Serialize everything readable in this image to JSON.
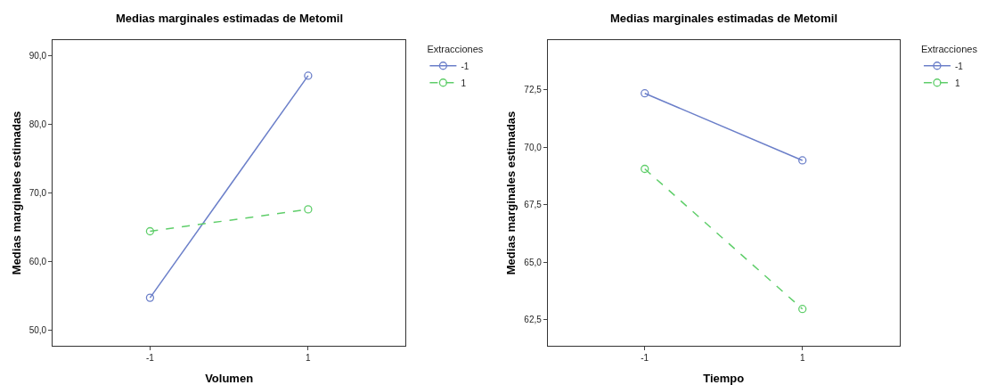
{
  "chart_data": [
    {
      "type": "line",
      "title": "Medias marginales estimadas de Metomil",
      "xlabel": "Volumen",
      "ylabel": "Medias marginales estimadas",
      "legend_title": "Extracciones",
      "legend": "top right",
      "marker": "circle",
      "categories": [
        "-1",
        "1"
      ],
      "ylim": [
        47.7,
        92.3
      ],
      "yticks": [
        {
          "value": 50,
          "label": "50,0"
        },
        {
          "value": 60,
          "label": "60,0"
        },
        {
          "value": 70,
          "label": "70,0"
        },
        {
          "value": 80,
          "label": "80,0"
        },
        {
          "value": 90,
          "label": "90,0"
        }
      ],
      "series": [
        {
          "name": "-1",
          "color": "#6b7fc9",
          "line_style": "solid",
          "values": [
            54.7,
            87.1
          ]
        },
        {
          "name": "1",
          "color": "#5fce6a",
          "line_style": "dashed",
          "values": [
            64.4,
            67.6
          ]
        }
      ]
    },
    {
      "type": "line",
      "title": "Medias marginales estimadas de Metomil",
      "xlabel": "Tiempo",
      "ylabel": "Medias marginales estimadas",
      "legend_title": "Extracciones",
      "legend": "top right",
      "marker": "circle",
      "categories": [
        "-1",
        "1"
      ],
      "ylim": [
        61.36,
        74.67
      ],
      "yticks": [
        {
          "value": 62.5,
          "label": "62,5"
        },
        {
          "value": 65,
          "label": "65,0"
        },
        {
          "value": 67.5,
          "label": "67,5"
        },
        {
          "value": 70,
          "label": "70,0"
        },
        {
          "value": 72.5,
          "label": "72,5"
        }
      ],
      "series": [
        {
          "name": "-1",
          "color": "#6b7fc9",
          "line_style": "solid",
          "values": [
            72.35,
            69.43
          ]
        },
        {
          "name": "1",
          "color": "#5fce6a",
          "line_style": "dashed",
          "values": [
            69.06,
            62.96
          ]
        }
      ]
    }
  ]
}
